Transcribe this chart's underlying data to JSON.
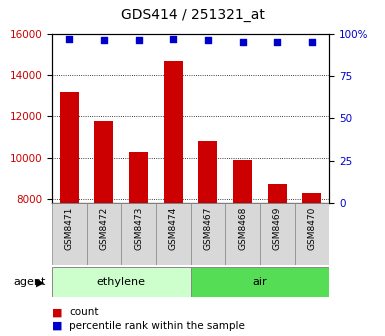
{
  "title": "GDS414 / 251321_at",
  "samples": [
    "GSM8471",
    "GSM8472",
    "GSM8473",
    "GSM8474",
    "GSM8467",
    "GSM8468",
    "GSM8469",
    "GSM8470"
  ],
  "bar_values": [
    13200,
    11800,
    10300,
    14700,
    10800,
    9900,
    8750,
    8300
  ],
  "percentile_values": [
    97,
    96,
    96,
    97,
    96,
    95,
    95,
    95
  ],
  "bar_color": "#cc0000",
  "dot_color": "#0000cc",
  "groups": [
    {
      "label": "ethylene",
      "start": 0,
      "end": 4,
      "color": "#ccffcc"
    },
    {
      "label": "air",
      "start": 4,
      "end": 8,
      "color": "#55dd55"
    }
  ],
  "agent_label": "agent",
  "ylim_left": [
    7800,
    16000
  ],
  "ylim_right": [
    0,
    100
  ],
  "yticks_left": [
    8000,
    10000,
    12000,
    14000,
    16000
  ],
  "yticks_right": [
    0,
    25,
    50,
    75,
    100
  ],
  "legend_count": "count",
  "legend_percentile": "percentile rank within the sample",
  "background_color": "#ffffff",
  "title_fontsize": 10,
  "tick_fontsize": 7.5,
  "bar_width": 0.55
}
